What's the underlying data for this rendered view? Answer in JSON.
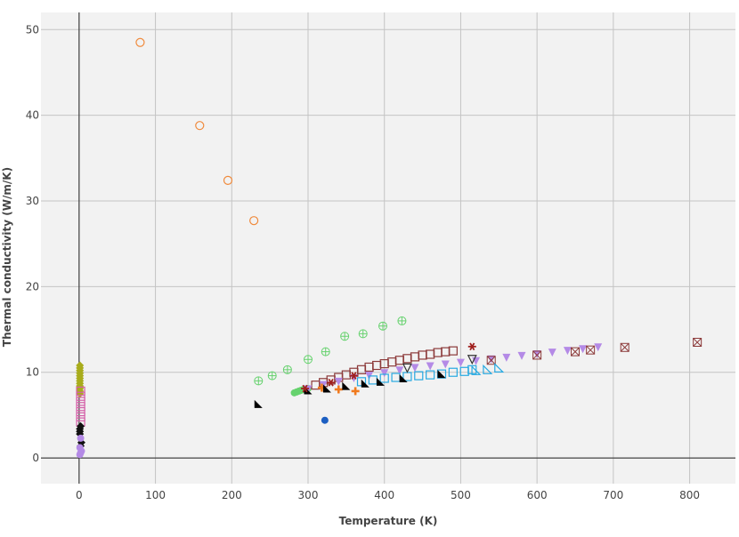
{
  "chart_data": {
    "type": "scatter",
    "xlabel": "Temperature (K)",
    "ylabel": "Thermal conductivity (W/m/K)",
    "xlim": [
      -50,
      860
    ],
    "ylim": [
      -3,
      52
    ],
    "xticks": [
      0,
      100,
      200,
      300,
      400,
      500,
      600,
      700,
      800
    ],
    "yticks": [
      0,
      10,
      20,
      30,
      40,
      50
    ],
    "grid": true,
    "legend": "none",
    "series": [
      {
        "marker": "circle-open",
        "color": "#f08a3c",
        "x": [
          80,
          158,
          195,
          229
        ],
        "y": [
          48.5,
          38.8,
          32.4,
          27.7
        ]
      },
      {
        "marker": "circle-cross-open",
        "color": "#66d26e",
        "x": [
          235,
          253,
          273,
          300,
          323,
          348,
          372,
          398,
          423
        ],
        "y": [
          9.0,
          9.6,
          10.3,
          11.5,
          12.4,
          14.2,
          14.5,
          15.4,
          16.0
        ]
      },
      {
        "marker": "circle",
        "color": "#66d26e",
        "x": [
          282,
          285,
          288,
          291,
          294,
          297,
          300
        ],
        "y": [
          7.6,
          7.7,
          7.8,
          7.9,
          8.0,
          7.9,
          8.1
        ]
      },
      {
        "marker": "square-open",
        "color": "#8c3a3a",
        "x": [
          310,
          320,
          330,
          340,
          350,
          360,
          370,
          380,
          390,
          400,
          410,
          420,
          430,
          440,
          450,
          460,
          470,
          480,
          490
        ],
        "y": [
          8.5,
          8.8,
          9.1,
          9.4,
          9.7,
          10.0,
          10.3,
          10.6,
          10.8,
          11.0,
          11.2,
          11.4,
          11.6,
          11.8,
          12.0,
          12.1,
          12.3,
          12.4,
          12.5
        ]
      },
      {
        "marker": "triangle-down",
        "color": "#b48ae6",
        "x": [
          300,
          320,
          340,
          360,
          380,
          400,
          420,
          440,
          460,
          480,
          500,
          520,
          540,
          560,
          580,
          600,
          620,
          640,
          660,
          680
        ],
        "y": [
          8.0,
          8.5,
          8.9,
          9.3,
          9.6,
          9.9,
          10.2,
          10.5,
          10.7,
          10.9,
          11.1,
          11.3,
          11.5,
          11.7,
          11.9,
          12.1,
          12.3,
          12.5,
          12.7,
          12.9
        ]
      },
      {
        "marker": "square-x-open",
        "color": "#8c3a3a",
        "x": [
          540,
          600,
          650,
          670,
          715,
          810
        ],
        "y": [
          11.4,
          12.0,
          12.4,
          12.6,
          12.9,
          13.5
        ]
      },
      {
        "marker": "square-open",
        "color": "#27a9e1",
        "x": [
          370,
          385,
          400,
          415,
          430,
          445,
          460,
          475,
          490,
          505,
          515
        ],
        "y": [
          8.9,
          9.1,
          9.3,
          9.4,
          9.5,
          9.6,
          9.7,
          9.8,
          10.0,
          10.1,
          10.3
        ]
      },
      {
        "marker": "triangle-open",
        "color": "#27a9e1",
        "x": [
          520,
          535,
          550
        ],
        "y": [
          10.2,
          10.3,
          10.5
        ]
      },
      {
        "marker": "cross",
        "color": "#f07a1e",
        "x": [
          318,
          340,
          362
        ],
        "y": [
          8.2,
          8.0,
          7.8
        ]
      },
      {
        "marker": "triangle-bl",
        "color": "#000000",
        "x": [
          235,
          300,
          325,
          350,
          375,
          395,
          425,
          475
        ],
        "y": [
          6.3,
          7.9,
          8.1,
          8.4,
          8.7,
          8.9,
          9.3,
          9.8
        ]
      },
      {
        "marker": "asterisk",
        "color": "#a0201e",
        "x": [
          296,
          330,
          360,
          515
        ],
        "y": [
          8.1,
          8.8,
          9.6,
          13.0
        ]
      },
      {
        "marker": "triangle-down-open",
        "color": "#333333",
        "x": [
          430,
          515
        ],
        "y": [
          10.5,
          11.5
        ]
      },
      {
        "marker": "circle",
        "color": "#1d5fc2",
        "x": [
          322
        ],
        "y": [
          4.4
        ]
      },
      {
        "marker": "diamond",
        "color": "#a8ac1c",
        "x": [
          1,
          1,
          1,
          1,
          1,
          1,
          1,
          1,
          1,
          1,
          1,
          1
        ],
        "y": [
          7.5,
          7.8,
          8.1,
          8.4,
          8.7,
          9.0,
          9.3,
          9.6,
          9.9,
          10.2,
          10.5,
          10.8
        ]
      },
      {
        "marker": "square-open",
        "color": "#d45fa8",
        "x": [
          2,
          2,
          2,
          2,
          2,
          2,
          2
        ],
        "y": [
          4.2,
          4.8,
          5.4,
          6.0,
          6.6,
          7.2,
          7.8
        ]
      },
      {
        "marker": "diamond",
        "color": "#111111",
        "x": [
          1,
          1,
          1,
          2,
          2,
          3
        ],
        "y": [
          2.8,
          3.1,
          3.4,
          3.7,
          1.4,
          1.8
        ]
      },
      {
        "marker": "circle",
        "color": "#b48ae6",
        "x": [
          1,
          2,
          3,
          2,
          1
        ],
        "y": [
          0.4,
          0.6,
          0.8,
          2.3,
          1.2
        ]
      }
    ]
  }
}
